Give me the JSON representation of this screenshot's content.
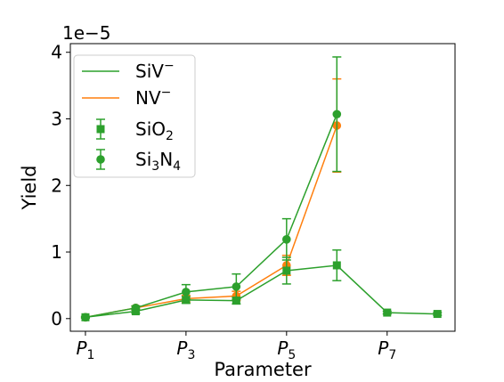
{
  "chart_data": {
    "type": "line",
    "xlabel": "Parameter",
    "ylabel": "Yield",
    "offset_text": "1e−5",
    "x_ticks": [
      {
        "x": 1,
        "base": "P",
        "sub": "1"
      },
      {
        "x": 3,
        "base": "P",
        "sub": "3"
      },
      {
        "x": 5,
        "base": "P",
        "sub": "5"
      },
      {
        "x": 7,
        "base": "P",
        "sub": "7"
      }
    ],
    "y_ticks": [
      0,
      1,
      2,
      3,
      4
    ],
    "xlim": [
      0.7,
      8.35
    ],
    "ylim": [
      -0.19,
      4.13
    ],
    "grid": false,
    "legend_position": "upper-left",
    "legend": [
      {
        "kind": "line",
        "series": "siv_sio2",
        "base": "SiV",
        "sup": "−"
      },
      {
        "kind": "line",
        "series": "nv_si3n4",
        "base": "NV",
        "sup": "−"
      },
      {
        "kind": "marker",
        "marker": "square",
        "base": "SiO",
        "sub": "2"
      },
      {
        "kind": "marker",
        "marker": "circle",
        "base": "Si",
        "sub1": "3",
        "mid": "N",
        "sub2": "4"
      }
    ],
    "series": [
      {
        "id": "nv_si3n4",
        "color": "#ff7f0e",
        "marker": "circle",
        "x": [
          1,
          2,
          3,
          4,
          5,
          6
        ],
        "y": [
          0.02,
          0.16,
          0.3,
          0.34,
          0.8,
          2.9
        ],
        "yerr": [
          0.01,
          0.03,
          0.05,
          0.07,
          0.15,
          0.7
        ]
      },
      {
        "id": "siv_sio2",
        "color": "#2ca02c",
        "marker": "square",
        "x": [
          1,
          2,
          3,
          4,
          5,
          6,
          7,
          8
        ],
        "y": [
          0.02,
          0.11,
          0.28,
          0.27,
          0.72,
          0.8,
          0.09,
          0.07
        ],
        "yerr": [
          0.01,
          0.03,
          0.05,
          0.05,
          0.2,
          0.23,
          0.02,
          0.02
        ]
      },
      {
        "id": "siv_si3n4",
        "color": "#2ca02c",
        "marker": "circle",
        "x": [
          1,
          2,
          3,
          4,
          5,
          6
        ],
        "y": [
          0.02,
          0.16,
          0.4,
          0.48,
          1.19,
          3.07
        ],
        "yerr": [
          0.01,
          0.03,
          0.11,
          0.19,
          0.31,
          0.86
        ]
      }
    ]
  }
}
